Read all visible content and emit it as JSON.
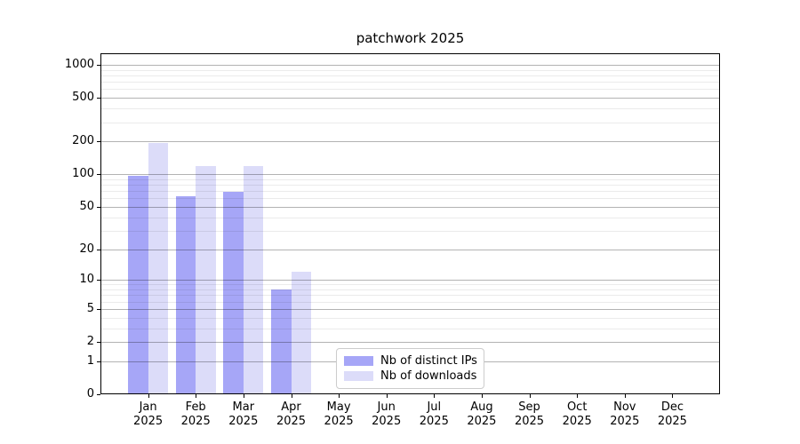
{
  "chart_data": {
    "type": "bar",
    "title": "patchwork 2025",
    "year_label": "2025",
    "categories": [
      "Jan",
      "Feb",
      "Mar",
      "Apr",
      "May",
      "Jun",
      "Jul",
      "Aug",
      "Sep",
      "Oct",
      "Nov",
      "Dec"
    ],
    "series": [
      {
        "name": "Nb of distinct IPs",
        "key": "distinct-ips",
        "color": "#a6a6f7",
        "values": [
          97,
          63,
          69,
          8,
          0,
          0,
          0,
          0,
          0,
          0,
          0,
          0
        ]
      },
      {
        "name": "Nb of downloads",
        "key": "downloads",
        "color": "#dcdcf9",
        "values": [
          195,
          120,
          120,
          12,
          0,
          0,
          0,
          0,
          0,
          0,
          0,
          0
        ]
      }
    ],
    "xlabel": "",
    "ylabel": "",
    "y_axis": {
      "scale": "log10(value+1)",
      "major_ticks": [
        0,
        1,
        2,
        5,
        10,
        20,
        50,
        100,
        200,
        500,
        1000
      ],
      "minor_ticks": [
        3,
        4,
        6,
        7,
        8,
        9,
        30,
        40,
        60,
        70,
        80,
        90,
        300,
        400,
        600,
        700,
        800,
        900
      ],
      "range": [
        0,
        1274
      ]
    },
    "grid": {
      "horizontal": true,
      "major_color": "#b3b3b3",
      "minor_color": "#ebebeb"
    },
    "legend": {
      "position": "inside-bottom-center",
      "entries": [
        "Nb of distinct IPs",
        "Nb of downloads"
      ]
    }
  }
}
